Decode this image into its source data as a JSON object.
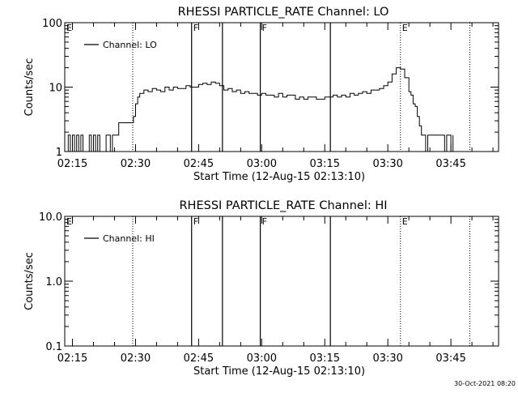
{
  "stamp": "30-Oct-2021 08:20",
  "chart_data": [
    {
      "type": "line",
      "title": "RHESSI PARTICLE_RATE Channel: LO",
      "xlabel": "Start Time (12-Aug-15 02:13:10)",
      "ylabel": "Counts/sec",
      "yscale": "log",
      "xlim": [
        "02:13:10",
        "03:56:20"
      ],
      "ylim": [
        1,
        100
      ],
      "xticks": [
        "02:15",
        "02:30",
        "02:45",
        "03:00",
        "03:15",
        "03:30",
        "03:45"
      ],
      "yticks": [
        "1",
        "10",
        "100"
      ],
      "legend": "top-left",
      "series": [
        {
          "name": "Channel: LO",
          "x": [
            "02:13:10",
            "02:14:00",
            "02:14:30",
            "02:15:00",
            "02:15:30",
            "02:16:00",
            "02:16:30",
            "02:17:00",
            "02:17:30",
            "02:18:00",
            "02:18:30",
            "02:19:00",
            "02:19:30",
            "02:20:00",
            "02:20:30",
            "02:21:00",
            "02:21:30",
            "02:22:00",
            "02:22:30",
            "02:23:00",
            "02:23:30",
            "02:24:00",
            "02:24:30",
            "02:25:00",
            "02:26:00",
            "02:27:00",
            "02:28:00",
            "02:29:00",
            "02:29:30",
            "02:30:00",
            "02:30:30",
            "02:31:00",
            "02:32:00",
            "02:33:00",
            "02:34:00",
            "02:35:00",
            "02:36:00",
            "02:37:00",
            "02:38:00",
            "02:39:00",
            "02:40:00",
            "02:41:00",
            "02:42:00",
            "02:43:00",
            "02:44:00",
            "02:45:00",
            "02:46:00",
            "02:47:00",
            "02:48:00",
            "02:49:00",
            "02:50:00",
            "02:51:00",
            "02:52:00",
            "02:53:00",
            "02:54:00",
            "02:55:00",
            "02:56:00",
            "02:57:00",
            "02:58:00",
            "02:59:00",
            "03:00:00",
            "03:01:00",
            "03:02:00",
            "03:03:00",
            "03:04:00",
            "03:05:00",
            "03:06:00",
            "03:07:00",
            "03:08:00",
            "03:09:00",
            "03:10:00",
            "03:11:00",
            "03:12:00",
            "03:13:00",
            "03:14:00",
            "03:15:00",
            "03:16:00",
            "03:17:00",
            "03:18:00",
            "03:19:00",
            "03:20:00",
            "03:21:00",
            "03:22:00",
            "03:23:00",
            "03:24:00",
            "03:25:00",
            "03:26:00",
            "03:27:00",
            "03:28:00",
            "03:29:00",
            "03:30:00",
            "03:31:00",
            "03:32:00",
            "03:33:00",
            "03:34:00",
            "03:35:00",
            "03:35:30",
            "03:36:00",
            "03:36:30",
            "03:37:00",
            "03:37:30",
            "03:38:00",
            "03:38:30",
            "03:39:00",
            "03:39:30",
            "03:40:00",
            "03:40:30",
            "03:41:00",
            "03:41:30",
            "03:42:00",
            "03:42:30",
            "03:43:00",
            "03:43:30",
            "03:44:00",
            "03:44:30",
            "03:45:00",
            "03:45:30"
          ],
          "y": [
            1,
            1.8,
            1,
            1.8,
            1,
            1.8,
            1,
            1.8,
            1,
            1,
            1,
            1.8,
            1,
            1.8,
            1,
            1.8,
            1,
            1,
            1,
            1.8,
            1.8,
            1,
            1.8,
            1.8,
            2.8,
            2.8,
            2.8,
            2.8,
            3.5,
            5.5,
            7,
            8,
            9,
            8.5,
            9.5,
            9,
            8.5,
            10,
            9,
            10,
            9.5,
            9.5,
            10.5,
            10,
            10,
            11,
            11.5,
            11,
            12,
            11.5,
            10.5,
            9,
            9.5,
            8.5,
            9,
            8,
            8.5,
            8,
            8,
            7.5,
            8,
            7.5,
            7.5,
            7,
            8,
            7,
            7.5,
            7.5,
            6.5,
            7,
            6.5,
            7,
            7,
            6.5,
            6.5,
            7,
            7,
            7.5,
            7,
            7.5,
            7,
            8,
            7.5,
            8,
            8.5,
            8,
            9,
            9,
            9.5,
            10.5,
            12,
            16,
            20,
            19,
            14,
            8.5,
            7.5,
            5.5,
            5,
            3.5,
            2.5,
            1.8,
            1.8,
            1,
            1.8,
            1.8,
            1.8,
            1.8,
            1.8,
            1.8,
            1.8,
            1.8,
            1,
            1.8,
            1.8,
            1,
            1.8
          ]
        }
      ],
      "annotations": {
        "solid_lines": [
          "02:43:20",
          "02:50:40",
          "02:59:40",
          "03:16:20"
        ],
        "dotted_lines": [
          "02:29:20",
          "03:33:00",
          "03:49:30"
        ],
        "labels": [
          {
            "text": "E",
            "x": "02:13:10"
          },
          {
            "text": "F",
            "x": "02:43:20"
          },
          {
            "text": "F",
            "x": "02:59:40"
          },
          {
            "text": "E",
            "x": "03:33:00"
          }
        ]
      }
    },
    {
      "type": "line",
      "title": "RHESSI PARTICLE_RATE Channel: HI",
      "xlabel": "Start Time (12-Aug-15 02:13:10)",
      "ylabel": "Counts/sec",
      "yscale": "log",
      "xlim": [
        "02:13:10",
        "03:56:20"
      ],
      "ylim": [
        0.1,
        10
      ],
      "xticks": [
        "02:15",
        "02:30",
        "02:45",
        "03:00",
        "03:15",
        "03:30",
        "03:45"
      ],
      "yticks": [
        "0.1",
        "1.0",
        "10.0"
      ],
      "legend": "top-left",
      "series": [
        {
          "name": "Channel: HI",
          "x": [],
          "y": []
        }
      ],
      "annotations": {
        "solid_lines": [
          "02:43:20",
          "02:50:40",
          "02:59:40",
          "03:16:20"
        ],
        "dotted_lines": [
          "02:29:20",
          "03:33:00",
          "03:49:30"
        ],
        "labels": [
          {
            "text": "E",
            "x": "02:13:10"
          },
          {
            "text": "F",
            "x": "02:43:20"
          },
          {
            "text": "F",
            "x": "02:59:40"
          },
          {
            "text": "E",
            "x": "03:33:00"
          }
        ]
      }
    }
  ]
}
